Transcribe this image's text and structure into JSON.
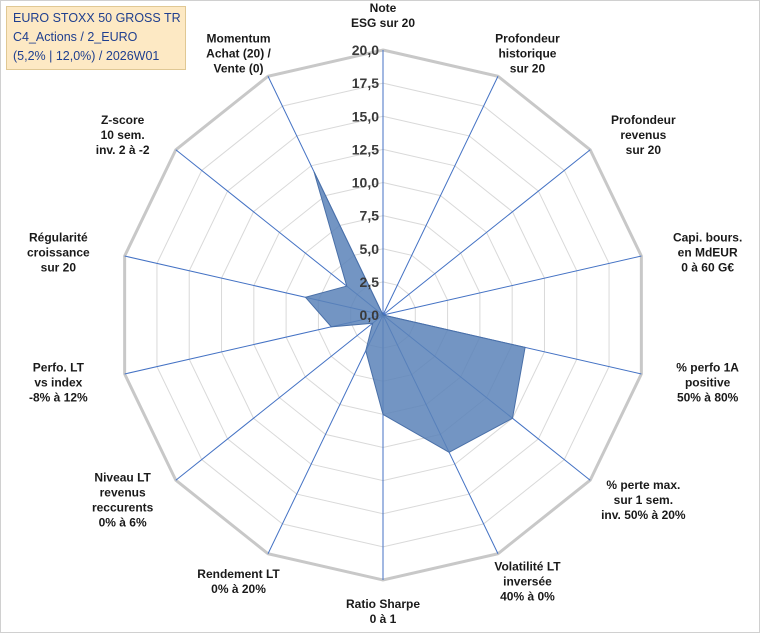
{
  "chart_data": {
    "type": "radar",
    "title_lines": [
      "EURO STOXX 50 GROSS TR",
      "C4_Actions / 2_EURO",
      "(5,2% | 12,0%) / 2026W01"
    ],
    "axes": [
      {
        "label": [
          "Note",
          "ESG sur 20"
        ],
        "value": 0
      },
      {
        "label": [
          "Profondeur",
          "historique",
          "sur 20"
        ],
        "value": 0
      },
      {
        "label": [
          "Profondeur",
          "revenus",
          "sur 20"
        ],
        "value": 0
      },
      {
        "label": [
          "Capi. bours.",
          "en MdEUR",
          "0 à 60 G€"
        ],
        "value": 0
      },
      {
        "label": [
          "% perfo 1A",
          "positive",
          "50% à 80%"
        ],
        "value": 11.0
      },
      {
        "label": [
          "% perte max.",
          "sur 1 sem.",
          "inv. 50% à 20%"
        ],
        "value": 12.5
      },
      {
        "label": [
          "Volatilité LT",
          "inversée",
          "40% à 0%"
        ],
        "value": 11.5
      },
      {
        "label": [
          "Ratio Sharpe",
          "0 à 1"
        ],
        "value": 7.5
      },
      {
        "label": [
          "Rendement LT",
          "0% à 20%"
        ],
        "value": 3.0
      },
      {
        "label": [
          "Niveau LT",
          "revenus",
          "reccurents",
          "0% à 6%"
        ],
        "value": 1.0
      },
      {
        "label": [
          "Perfo. LT",
          "vs index",
          "-8% à 12%"
        ],
        "value": 4.0
      },
      {
        "label": [
          "Régularité",
          "croissance",
          "sur 20"
        ],
        "value": 6.0
      },
      {
        "label": [
          "Z-score",
          "10 sem.",
          "inv. 2 à -2"
        ],
        "value": 3.5
      },
      {
        "label": [
          "Momentum",
          "Achat (20) /",
          "Vente (0)"
        ],
        "value": 12.0
      }
    ],
    "r_ticks": [
      "0,0",
      "2,5",
      "5,0",
      "7,5",
      "10,0",
      "12,5",
      "15,0",
      "17,5",
      "20,0"
    ],
    "r_min": 0,
    "r_max": 20,
    "fill_color": "#5b82b8",
    "fill_opacity": 0.85,
    "spoke_color": "#4472c4",
    "grid_color": "#d9d9d9",
    "outer_ring_color": "#c8c8c8"
  }
}
